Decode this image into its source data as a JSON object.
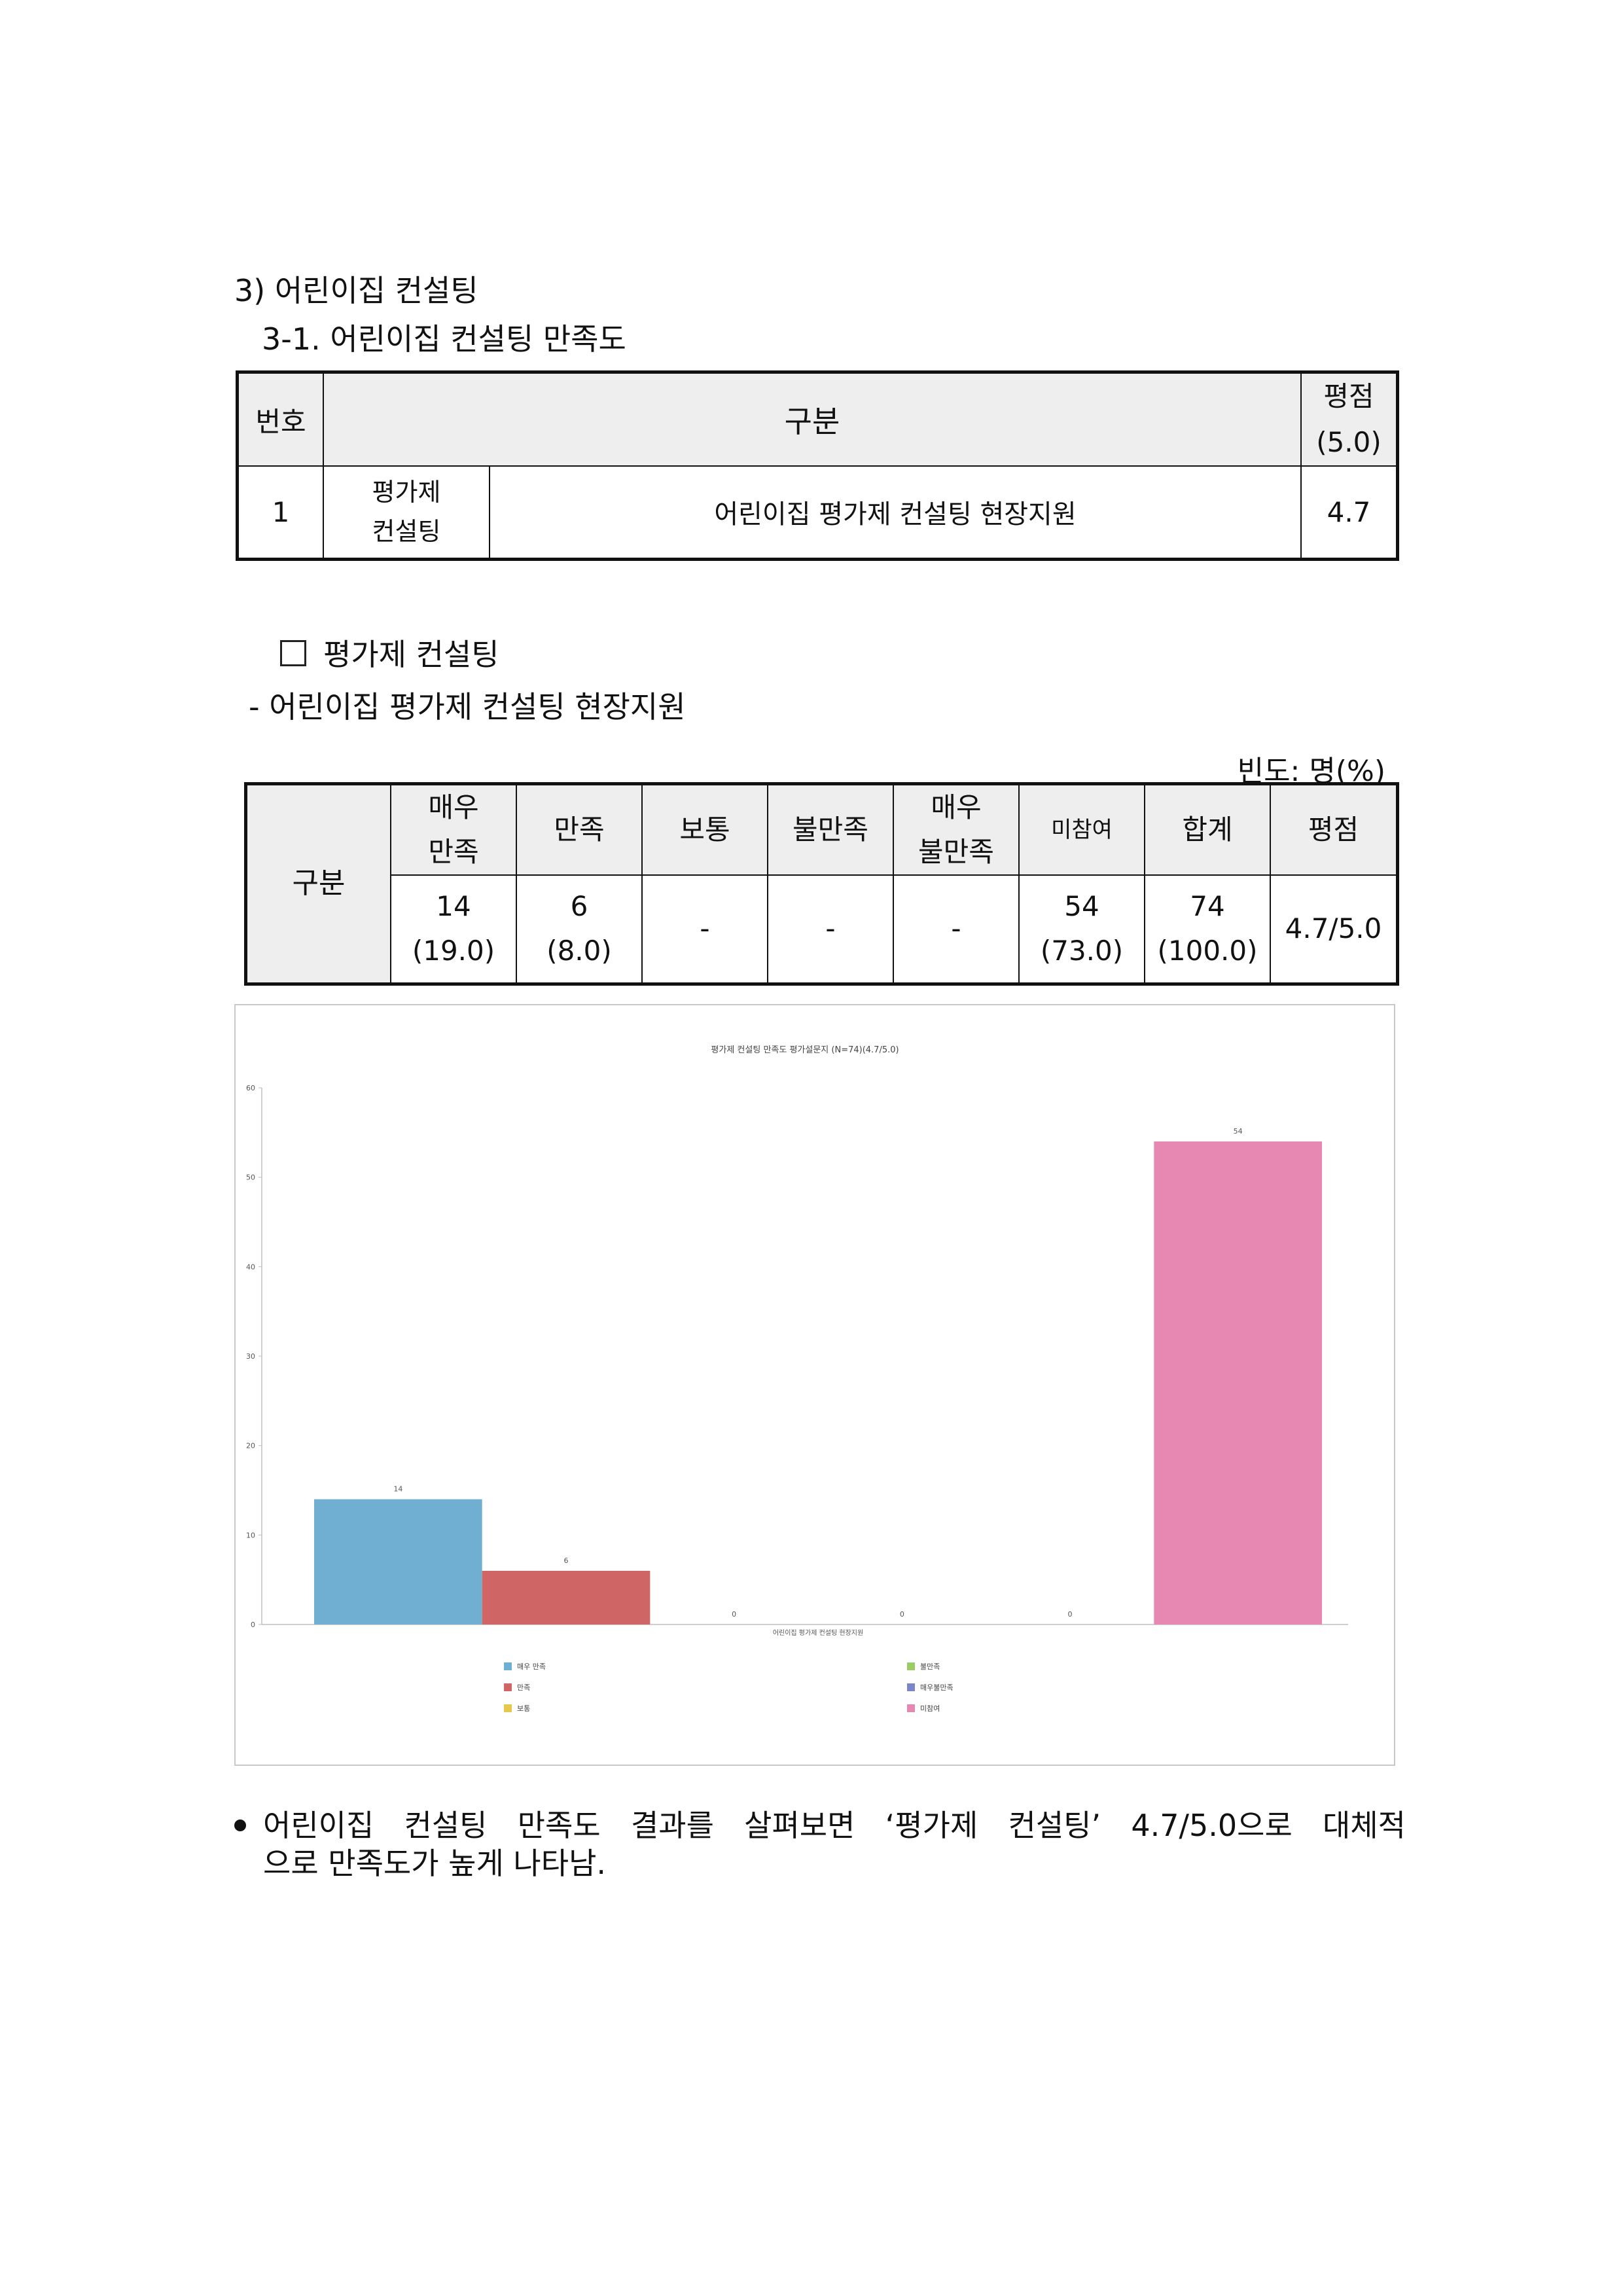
{
  "section": {
    "heading": "3) 어린이집 컨설팅",
    "subheading": "3-1. 어린이집 컨설팅 만족도"
  },
  "table1": {
    "headers": {
      "no": "번호",
      "category": "구분",
      "score": "평점",
      "score_max": "(5.0)"
    },
    "row": {
      "no": "1",
      "group": "평가제 컨설팅",
      "group_line1": "평가제",
      "group_line2": "컨설팅",
      "item": "어린이집 평가제 컨설팅 현장지원",
      "score": "4.7"
    }
  },
  "subsection": {
    "box_title": "평가제 컨설팅",
    "dash_title": "- 어린이집 평가제 컨설팅 현장지원",
    "unit": "빈도: 명(%)"
  },
  "table2": {
    "row_header": "구분",
    "headers": [
      {
        "line1": "매우",
        "line2": "만족"
      },
      {
        "line1": "만족",
        "line2": ""
      },
      {
        "line1": "보통",
        "line2": ""
      },
      {
        "line1": "불만족",
        "line2": ""
      },
      {
        "line1": "매우",
        "line2": "불만족"
      },
      {
        "line1": "미참여",
        "line2": ""
      },
      {
        "line1": "합계",
        "line2": ""
      },
      {
        "line1": "평점",
        "line2": ""
      }
    ],
    "cells": [
      {
        "count": "14",
        "pct": "(19.0)"
      },
      {
        "count": "6",
        "pct": "(8.0)"
      },
      {
        "count": "-",
        "pct": ""
      },
      {
        "count": "-",
        "pct": ""
      },
      {
        "count": "-",
        "pct": ""
      },
      {
        "count": "54",
        "pct": "(73.0)"
      },
      {
        "count": "74",
        "pct": "(100.0)"
      }
    ],
    "score": "4.7/5.0"
  },
  "chart_data": {
    "type": "bar",
    "title": "평가제 컨설팅 만족도 평가설문지 (N=74)(4.7/5.0)",
    "categories": [
      "어린이집 평가제 컨설팅 현장지원"
    ],
    "xlabel": "",
    "ylabel": "",
    "ylim": [
      0,
      60
    ],
    "yticks": [
      0,
      10,
      20,
      30,
      40,
      50,
      60
    ],
    "grid": false,
    "legend_position": "bottom",
    "series": [
      {
        "name": "매우 만족",
        "values": [
          14
        ],
        "color": "#71afd2",
        "label": "14"
      },
      {
        "name": "만족",
        "values": [
          6
        ],
        "color": "#d06565",
        "label": "6"
      },
      {
        "name": "보통",
        "values": [
          0
        ],
        "color": "#e6c84a",
        "label": "0"
      },
      {
        "name": "불만족",
        "values": [
          0
        ],
        "color": "#9ccc6a",
        "label": "0"
      },
      {
        "name": "매우불만족",
        "values": [
          0
        ],
        "color": "#7b86c9",
        "label": "0"
      },
      {
        "name": "미참여",
        "values": [
          54
        ],
        "color": "#e688b1",
        "label": "54"
      }
    ]
  },
  "conclusion": {
    "line1": "어린이집 컨설팅 만족도 결과를 살펴보면 ‘평가제 컨설팅’ 4.7/5.0으로 대체적",
    "line2": "으로 만족도가 높게 나타남."
  }
}
